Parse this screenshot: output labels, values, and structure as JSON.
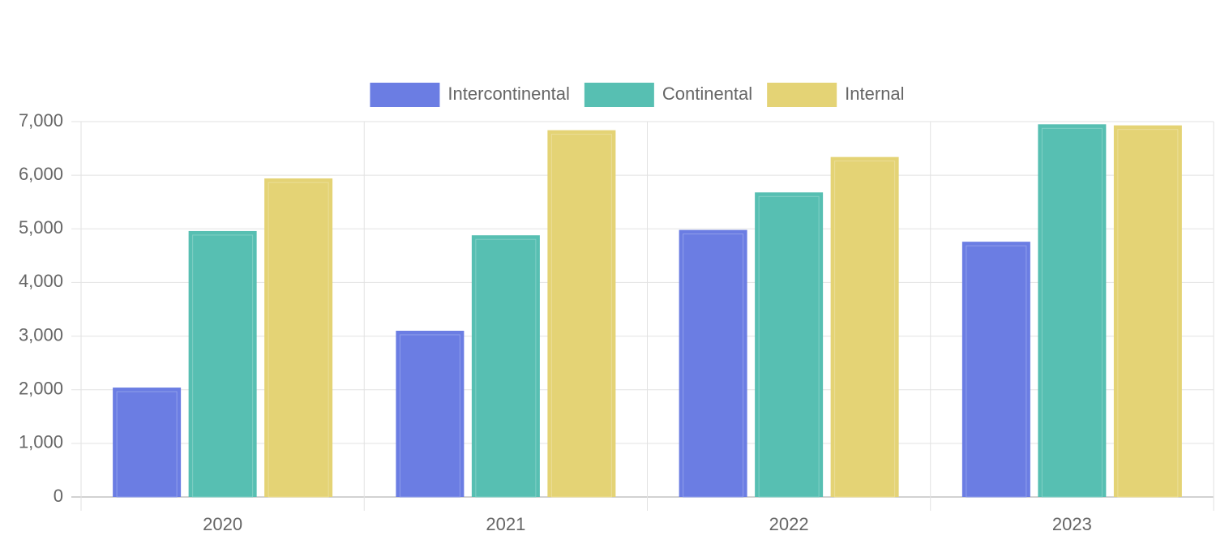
{
  "chart_data": {
    "type": "bar",
    "title": "",
    "xlabel": "",
    "ylabel": "",
    "categories": [
      "2020",
      "2021",
      "2022",
      "2023"
    ],
    "series": [
      {
        "name": "Intercontinental",
        "color": "#6b7de3",
        "values": [
          2040,
          3100,
          4980,
          4760
        ]
      },
      {
        "name": "Continental",
        "color": "#57bfb2",
        "values": [
          4960,
          4880,
          5680,
          6950
        ]
      },
      {
        "name": "Internal",
        "color": "#e4d375",
        "values": [
          5940,
          6840,
          6340,
          6930
        ]
      }
    ],
    "ylim": [
      0,
      7000
    ],
    "yticks": [
      "0",
      "1,000",
      "2,000",
      "3,000",
      "4,000",
      "5,000",
      "6,000",
      "7,000"
    ],
    "ytick_values": [
      0,
      1000,
      2000,
      3000,
      4000,
      5000,
      6000,
      7000
    ],
    "grid": true,
    "legend_position": "top-center"
  }
}
